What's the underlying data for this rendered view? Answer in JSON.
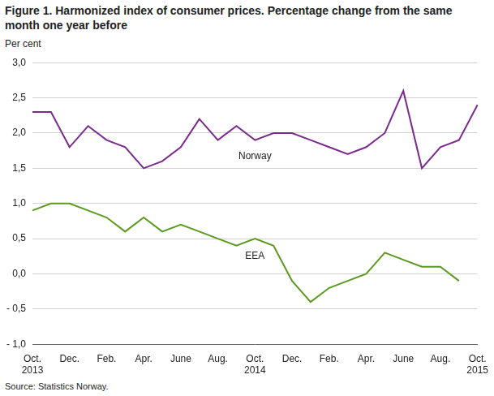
{
  "chart_data": {
    "type": "line",
    "title": "Figure 1. Harmonized index of consumer prices. Percentage change from the same month one year before",
    "y_label": "Per cent",
    "source": "Source: Statistics Norway.",
    "categories": [
      "Oct.\n2013",
      null,
      "Dec.",
      null,
      "Feb.",
      null,
      "Apr.",
      null,
      "June",
      null,
      "Aug.",
      null,
      "Oct.\n2014",
      null,
      "Dec.",
      null,
      "Feb.",
      null,
      "Apr.",
      null,
      "June",
      null,
      "Aug.",
      null,
      "Oct.\n2015"
    ],
    "series": [
      {
        "name": "Norway",
        "color": "#7b2a8e",
        "values": [
          2.3,
          2.3,
          1.8,
          2.1,
          1.9,
          1.8,
          1.5,
          1.6,
          1.8,
          2.2,
          1.9,
          2.1,
          1.9,
          2.0,
          2.0,
          1.9,
          1.8,
          1.7,
          1.8,
          2.0,
          2.6,
          1.5,
          1.8,
          1.9,
          2.4
        ]
      },
      {
        "name": "EEA",
        "color": "#5a9a1e",
        "values": [
          0.9,
          1.0,
          1.0,
          0.9,
          0.8,
          0.6,
          0.8,
          0.6,
          0.7,
          0.6,
          0.5,
          0.4,
          0.5,
          0.4,
          -0.1,
          -0.4,
          -0.2,
          -0.1,
          0.0,
          0.3,
          0.2,
          0.1,
          0.1,
          -0.1,
          null
        ]
      }
    ],
    "ylim": [
      -1.0,
      3.0
    ],
    "yticks": [
      {
        "value": -1.0,
        "label": "- 1,0"
      },
      {
        "value": -0.5,
        "label": "- 0,5"
      },
      {
        "value": 0.0,
        "label": "0,0"
      },
      {
        "value": 0.5,
        "label": "0,5"
      },
      {
        "value": 1.0,
        "label": "1,0"
      },
      {
        "value": 1.5,
        "label": "1,5"
      },
      {
        "value": 2.0,
        "label": "2,0"
      },
      {
        "value": 2.5,
        "label": "2,5"
      },
      {
        "value": 3.0,
        "label": "3,0"
      }
    ],
    "grid": true
  }
}
